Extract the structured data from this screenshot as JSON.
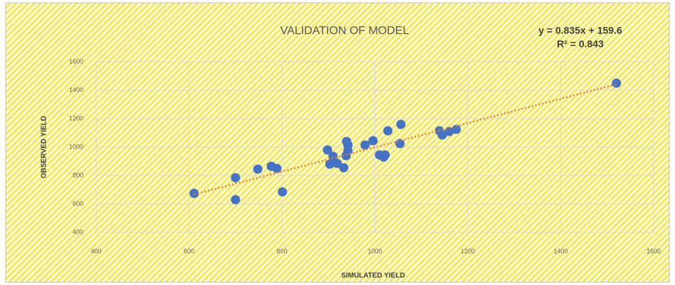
{
  "chart_data": {
    "type": "scatter",
    "title": "VALIDATION OF MODEL",
    "x_label": "SIMULATED YIELD",
    "y_label": "OBSERVED YIELD",
    "trendline": {
      "equation": "y = 0.835x + 159.6",
      "r_squared": "R² = 0.843",
      "color": "#ed7d31"
    },
    "series": [
      {
        "color": "#4472c4",
        "x": [
          611,
          700,
          700,
          748,
          777,
          789,
          801,
          898,
          903,
          910,
          919,
          933,
          939,
          942,
          942,
          938,
          979,
          996,
          1010,
          1019,
          1022,
          1028,
          1054,
          1056,
          1139,
          1145,
          1160,
          1175,
          1520
        ],
        "values": [
          675,
          785,
          630,
          845,
          865,
          850,
          685,
          980,
          880,
          935,
          885,
          855,
          1040,
          975,
          1015,
          940,
          1015,
          1045,
          945,
          930,
          945,
          1115,
          1025,
          1160,
          1115,
          1085,
          1110,
          1125,
          1450
        ]
      }
    ],
    "xlim": [
      400,
      1600
    ],
    "xticks": [
      400,
      600,
      800,
      1000,
      1200,
      1400,
      1600
    ],
    "ylim": [
      400,
      1600
    ],
    "yticks": [
      400,
      600,
      800,
      1000,
      1200,
      1400,
      1600
    ],
    "grid": true
  }
}
